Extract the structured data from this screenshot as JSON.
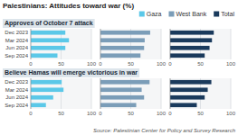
{
  "title": "Palestinians: Attitudes toward war (%)",
  "annotations": [
    "Source: Palestinian Center for Policy and Survey Research"
  ],
  "chart_data": [
    {
      "type": "bar",
      "orientation": "horizontal",
      "title": "Approves of October 7 attack",
      "categories": [
        "Dec 2023",
        "Mar 2024",
        "Jun 2024",
        "Sep 2024"
      ],
      "series": [
        {
          "name": "Gaza",
          "color": "#5bc8e8",
          "values": [
            57,
            63,
            57,
            44
          ]
        },
        {
          "name": "West Bank",
          "color": "#7b9db8",
          "values": [
            82,
            73,
            72,
            66
          ]
        },
        {
          "name": "Total",
          "color": "#1a3a5c",
          "values": [
            72,
            69,
            65,
            57
          ]
        }
      ],
      "xlim": [
        0,
        100
      ],
      "xticks": [
        0,
        50,
        100
      ],
      "grid": true,
      "legend": "upper right"
    },
    {
      "type": "bar",
      "orientation": "horizontal",
      "title": "Believe Hamas will emerge victorious in war",
      "categories": [
        "Dec 2023",
        "Mar 2024",
        "Jun 2024",
        "Sep 2024"
      ],
      "series": [
        {
          "name": "Gaza",
          "color": "#5bc8e8",
          "values": [
            51,
            54,
            37,
            25
          ]
        },
        {
          "name": "West Bank",
          "color": "#7b9db8",
          "values": [
            81,
            68,
            72,
            59
          ]
        },
        {
          "name": "Total",
          "color": "#1a3a5c",
          "values": [
            68,
            62,
            57,
            44
          ]
        }
      ],
      "xlim": [
        0,
        100
      ],
      "xticks": [
        0,
        50,
        100
      ],
      "grid": true
    }
  ]
}
